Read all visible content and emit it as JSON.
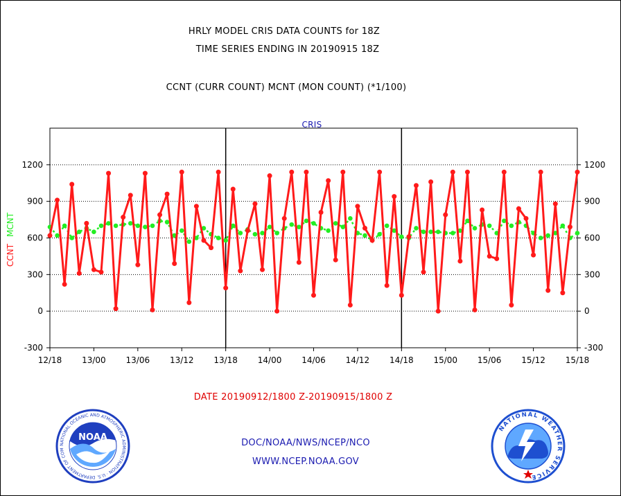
{
  "header": {
    "title_line1": "HRLY MODEL CRIS DATA COUNTS for 18Z",
    "title_line2": "TIME SERIES ENDING IN 20190915 18Z",
    "subtitle": "CCNT (CURR COUNT) MCNT (MON COUNT) (*1/100)",
    "panel_label": "CRIS"
  },
  "footer": {
    "date_range": "DATE 20190912/1800 Z-20190915/1800 Z",
    "credit_line1": "DOC/NOAA/NWS/NCEP/NCO",
    "credit_line2": "WWW.NCEP.NOAA.GOV"
  },
  "logos": {
    "left": {
      "icon": "noaa-logo-icon",
      "text": "NOAA",
      "ring_text": "NATIONAL OCEANIC AND ATMOSPHERIC ADMINISTRATION · U.S. DEPARTMENT OF COMMERCE"
    },
    "right": {
      "icon": "nws-logo-icon",
      "ring_text": "NATIONAL WEATHER SERVICE"
    }
  },
  "colors": {
    "ccnt": "#ff1a1a",
    "mcnt": "#22ee22",
    "panel_label": "#1a1ab0",
    "noaa_blue": "#1f3fbf",
    "nws_blue": "#1e4fd0"
  },
  "chart_data": {
    "type": "line",
    "ylabel_ccnt": "CCNT",
    "ylabel_mcnt": "MCNT",
    "ylim": [
      -300,
      1500
    ],
    "xlim": [
      0,
      72
    ],
    "yticks": [
      -300,
      0,
      300,
      600,
      900,
      1200
    ],
    "ytick_labels": [
      "-300",
      "0",
      "300",
      "600",
      "900",
      "1200"
    ],
    "xticks": [
      0,
      6,
      12,
      18,
      24,
      30,
      36,
      42,
      48,
      54,
      60,
      66,
      72
    ],
    "xtick_labels": [
      "12/18",
      "13/00",
      "13/06",
      "13/12",
      "13/18",
      "14/00",
      "14/06",
      "14/12",
      "14/18",
      "15/00",
      "15/06",
      "15/12",
      "15/18"
    ],
    "grid": true,
    "day_separators": [
      24,
      48
    ],
    "series": [
      {
        "name": "CCNT",
        "color": "#ff1a1a",
        "values": [
          620,
          910,
          220,
          1040,
          310,
          720,
          340,
          320,
          1130,
          20,
          770,
          950,
          380,
          1130,
          10,
          790,
          960,
          390,
          1140,
          70,
          860,
          580,
          520,
          1140,
          190,
          1000,
          330,
          660,
          880,
          340,
          1110,
          0,
          760,
          1140,
          400,
          1140,
          130,
          810,
          1070,
          420,
          1140,
          50,
          860,
          680,
          580,
          1140,
          210,
          940,
          130,
          610,
          1030,
          320,
          1060,
          0,
          790,
          1140,
          410,
          1140,
          10,
          830,
          450,
          430,
          1140,
          50,
          840,
          760,
          460,
          1140,
          170,
          880,
          150,
          690,
          1140
        ]
      },
      {
        "name": "MCNT",
        "color": "#22ee22",
        "values": [
          690,
          620,
          700,
          600,
          650,
          680,
          650,
          700,
          720,
          700,
          710,
          720,
          700,
          690,
          700,
          740,
          730,
          620,
          660,
          570,
          600,
          680,
          630,
          600,
          580,
          700,
          640,
          670,
          630,
          640,
          690,
          640,
          680,
          710,
          690,
          740,
          720,
          680,
          660,
          720,
          690,
          760,
          640,
          620,
          580,
          630,
          700,
          660,
          610,
          600,
          680,
          650,
          650,
          650,
          640,
          640,
          660,
          740,
          680,
          710,
          700,
          640,
          740,
          700,
          730,
          700,
          640,
          600,
          620,
          640,
          700,
          600,
          640
        ]
      }
    ]
  }
}
